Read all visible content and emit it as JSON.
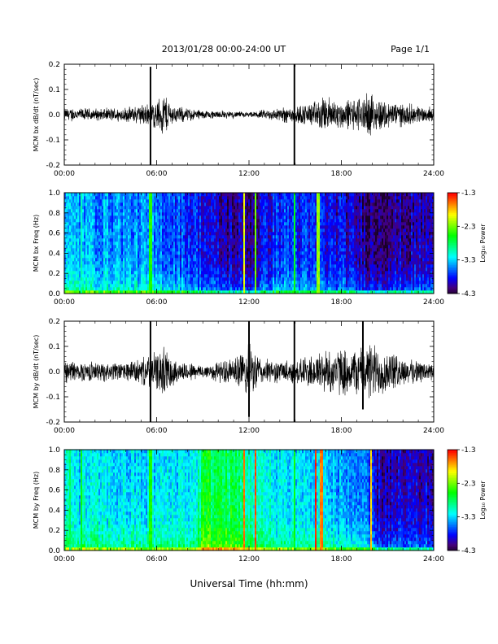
{
  "header": {
    "title": "2013/01/28  00:00-24:00 UT",
    "page": "Page 1/1"
  },
  "xlabel": "Universal Time (hh:mm)",
  "colorbar": {
    "label": "Log₁₀ Power",
    "ticks": [
      "-1.3",
      "-2.3",
      "-3.3",
      "-4.3"
    ],
    "range": [
      -4.3,
      -1.3
    ]
  },
  "chart_data": [
    {
      "type": "line",
      "ylabel": "MCM bx dB/dt (nT/sec)",
      "xlim": [
        0,
        24
      ],
      "ylim": [
        -0.2,
        0.2
      ],
      "x_ticks": [
        "00:00",
        "06:00",
        "12:00",
        "18:00",
        "24:00"
      ],
      "y_ticks": [
        "-0.2",
        "-0.1",
        "0.0",
        "0.1",
        "0.2"
      ],
      "envelope": [
        {
          "x": 0,
          "amp": 0.03
        },
        {
          "x": 2,
          "amp": 0.025
        },
        {
          "x": 4,
          "amp": 0.03
        },
        {
          "x": 6,
          "amp": 0.06
        },
        {
          "x": 6.5,
          "amp": 0.1
        },
        {
          "x": 7,
          "amp": 0.04
        },
        {
          "x": 9,
          "amp": 0.02
        },
        {
          "x": 12,
          "amp": 0.01
        },
        {
          "x": 14,
          "amp": 0.03
        },
        {
          "x": 16,
          "amp": 0.05
        },
        {
          "x": 17,
          "amp": 0.08
        },
        {
          "x": 18,
          "amp": 0.06
        },
        {
          "x": 20,
          "amp": 0.09
        },
        {
          "x": 21,
          "amp": 0.06
        },
        {
          "x": 24,
          "amp": 0.03
        }
      ],
      "spikes": [
        {
          "x": 5.6,
          "y": [
            -0.2,
            0.19
          ]
        },
        {
          "x": 14.95,
          "y": [
            -0.2,
            0.2
          ]
        }
      ]
    },
    {
      "type": "heatmap",
      "ylabel": "MCM bx Freq (Hz)",
      "xlim": [
        0,
        24
      ],
      "ylim": [
        0,
        1.0
      ],
      "x_ticks": [
        "00:00",
        "06:00",
        "12:00",
        "18:00",
        "24:00"
      ],
      "y_ticks": [
        "0.0",
        "0.2",
        "0.4",
        "0.6",
        "0.8",
        "1.0"
      ],
      "base_level": [
        {
          "x": 0,
          "v": -3.4
        },
        {
          "x": 5,
          "v": -3.5
        },
        {
          "x": 8,
          "v": -3.7
        },
        {
          "x": 10,
          "v": -4.0
        },
        {
          "x": 12,
          "v": -4.1
        },
        {
          "x": 14,
          "v": -3.7
        },
        {
          "x": 16,
          "v": -3.8
        },
        {
          "x": 18,
          "v": -3.9
        },
        {
          "x": 20,
          "v": -4.1
        },
        {
          "x": 24,
          "v": -4.0
        }
      ],
      "bright_lines": [
        {
          "x": 1.1,
          "v": -3.0
        },
        {
          "x": 5.6,
          "v": -2.5
        },
        {
          "x": 11.7,
          "v": -2.0
        },
        {
          "x": 12.4,
          "v": -2.3
        },
        {
          "x": 14.95,
          "v": -2.6
        },
        {
          "x": 16.5,
          "v": -2.2
        }
      ]
    },
    {
      "type": "line",
      "ylabel": "MCM by dB/dt (nT/sec)",
      "xlim": [
        0,
        24
      ],
      "ylim": [
        -0.2,
        0.2
      ],
      "x_ticks": [
        "00:00",
        "06:00",
        "12:00",
        "18:00",
        "24:00"
      ],
      "y_ticks": [
        "-0.2",
        "-0.1",
        "0.0",
        "0.1",
        "0.2"
      ],
      "envelope": [
        {
          "x": 0,
          "amp": 0.05
        },
        {
          "x": 2,
          "amp": 0.04
        },
        {
          "x": 4,
          "amp": 0.04
        },
        {
          "x": 6,
          "amp": 0.08
        },
        {
          "x": 6.5,
          "amp": 0.11
        },
        {
          "x": 7.2,
          "amp": 0.05
        },
        {
          "x": 9,
          "amp": 0.03
        },
        {
          "x": 11,
          "amp": 0.06
        },
        {
          "x": 12,
          "amp": 0.12
        },
        {
          "x": 13,
          "amp": 0.05
        },
        {
          "x": 15,
          "amp": 0.05
        },
        {
          "x": 17,
          "amp": 0.1
        },
        {
          "x": 19,
          "amp": 0.1
        },
        {
          "x": 20,
          "amp": 0.13
        },
        {
          "x": 22,
          "amp": 0.06
        },
        {
          "x": 24,
          "amp": 0.04
        }
      ],
      "spikes": [
        {
          "x": 5.6,
          "y": [
            -0.2,
            0.2
          ]
        },
        {
          "x": 12.0,
          "y": [
            -0.18,
            0.2
          ]
        },
        {
          "x": 14.95,
          "y": [
            -0.2,
            0.2
          ]
        },
        {
          "x": 19.4,
          "y": [
            -0.15,
            0.2
          ]
        }
      ]
    },
    {
      "type": "heatmap",
      "ylabel": "MCM by Freq (Hz)",
      "xlim": [
        0,
        24
      ],
      "ylim": [
        0,
        1.0
      ],
      "x_ticks": [
        "00:00",
        "06:00",
        "12:00",
        "18:00",
        "24:00"
      ],
      "y_ticks": [
        "0.0",
        "0.2",
        "0.4",
        "0.6",
        "0.8",
        "1.0"
      ],
      "base_level": [
        {
          "x": 0,
          "v": -3.2
        },
        {
          "x": 5,
          "v": -3.3
        },
        {
          "x": 8.5,
          "v": -3.2
        },
        {
          "x": 9,
          "v": -2.7
        },
        {
          "x": 11,
          "v": -2.8
        },
        {
          "x": 13,
          "v": -3.2
        },
        {
          "x": 16,
          "v": -3.3
        },
        {
          "x": 19,
          "v": -3.5
        },
        {
          "x": 20.5,
          "v": -4.0
        },
        {
          "x": 24,
          "v": -4.0
        }
      ],
      "bright_lines": [
        {
          "x": 0.4,
          "v": -2.8
        },
        {
          "x": 1.1,
          "v": -2.6
        },
        {
          "x": 5.6,
          "v": -2.5
        },
        {
          "x": 11.7,
          "v": -1.6
        },
        {
          "x": 12.4,
          "v": -1.5
        },
        {
          "x": 14.95,
          "v": -2.6
        },
        {
          "x": 16.3,
          "v": -1.4
        },
        {
          "x": 16.7,
          "v": -1.6
        },
        {
          "x": 19.9,
          "v": -1.8
        }
      ]
    }
  ]
}
